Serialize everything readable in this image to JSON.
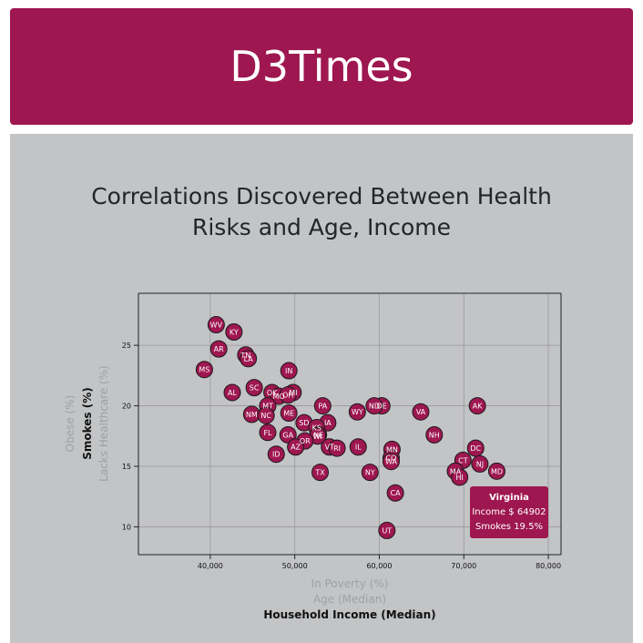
{
  "header": {
    "title": "D3Times"
  },
  "chart_title": {
    "line1": "Correlations Discovered Between Health",
    "line2": "Risks and Age, Income"
  },
  "tooltip": {
    "title": "Virginia",
    "line1": "Income $ 64902",
    "line2": "Smokes 19.5%"
  },
  "chart_data": {
    "type": "scatter",
    "x_axis_labels": [
      {
        "text": "In Poverty (%)",
        "active": false
      },
      {
        "text": "Age (Median)",
        "active": false
      },
      {
        "text": "Household Income (Median)",
        "active": true
      }
    ],
    "y_axis_labels": [
      {
        "text": "Obese (%)",
        "active": false
      },
      {
        "text": "Smokes (%)",
        "active": true
      },
      {
        "text": "Lacks Healthcare (%)",
        "active": false
      }
    ],
    "xlim": [
      31500,
      81500
    ],
    "ylim": [
      7.7,
      29.3
    ],
    "x_ticks": [
      40000,
      50000,
      60000,
      70000,
      80000
    ],
    "x_tick_labels": [
      "40,000",
      "50,000",
      "60,000",
      "70,000",
      "80,000"
    ],
    "y_ticks": [
      10,
      15,
      20,
      25
    ],
    "y_tick_labels": [
      "10",
      "15",
      "20",
      "25"
    ],
    "grid": true,
    "point_color": "#9e1750",
    "points": [
      {
        "abbr": "WV",
        "x": 40700,
        "y": 26.7
      },
      {
        "abbr": "KY",
        "x": 42800,
        "y": 26.1
      },
      {
        "abbr": "AR",
        "x": 41000,
        "y": 24.7
      },
      {
        "abbr": "TN",
        "x": 44200,
        "y": 24.2
      },
      {
        "abbr": "LA",
        "x": 44500,
        "y": 23.9
      },
      {
        "abbr": "MS",
        "x": 39300,
        "y": 23.0
      },
      {
        "abbr": "IN",
        "x": 49300,
        "y": 22.9
      },
      {
        "abbr": "SC",
        "x": 45200,
        "y": 21.5
      },
      {
        "abbr": "AL",
        "x": 42600,
        "y": 21.1
      },
      {
        "abbr": "OK",
        "x": 47300,
        "y": 21.1
      },
      {
        "abbr": "MI",
        "x": 49800,
        "y": 21.1
      },
      {
        "abbr": "MO",
        "x": 48100,
        "y": 20.8
      },
      {
        "abbr": "OH",
        "x": 49200,
        "y": 20.9
      },
      {
        "abbr": "MT",
        "x": 46800,
        "y": 20.0
      },
      {
        "abbr": "PA",
        "x": 53300,
        "y": 20.0
      },
      {
        "abbr": "DE",
        "x": 60300,
        "y": 20.0
      },
      {
        "abbr": "ND",
        "x": 59400,
        "y": 20.0
      },
      {
        "abbr": "AK",
        "x": 71600,
        "y": 20.0
      },
      {
        "abbr": "WY",
        "x": 57400,
        "y": 19.5
      },
      {
        "abbr": "VA",
        "x": 64900,
        "y": 19.5
      },
      {
        "abbr": "NM",
        "x": 44900,
        "y": 19.3
      },
      {
        "abbr": "NC",
        "x": 46600,
        "y": 19.2
      },
      {
        "abbr": "ME",
        "x": 49300,
        "y": 19.4
      },
      {
        "abbr": "SD",
        "x": 51100,
        "y": 18.6
      },
      {
        "abbr": "IA",
        "x": 53900,
        "y": 18.6
      },
      {
        "abbr": "KS",
        "x": 52600,
        "y": 18.2
      },
      {
        "abbr": "FL",
        "x": 46800,
        "y": 17.8
      },
      {
        "abbr": "GA",
        "x": 49200,
        "y": 17.6
      },
      {
        "abbr": "NE",
        "x": 52800,
        "y": 17.6
      },
      {
        "abbr": "WI",
        "x": 52700,
        "y": 17.5
      },
      {
        "abbr": "OR",
        "x": 51200,
        "y": 17.1
      },
      {
        "abbr": "NH",
        "x": 66500,
        "y": 17.6
      },
      {
        "abbr": "AZ",
        "x": 50100,
        "y": 16.6
      },
      {
        "abbr": "VT",
        "x": 54100,
        "y": 16.6
      },
      {
        "abbr": "RI",
        "x": 55000,
        "y": 16.5
      },
      {
        "abbr": "IL",
        "x": 57500,
        "y": 16.6
      },
      {
        "abbr": "DC",
        "x": 71400,
        "y": 16.5
      },
      {
        "abbr": "MN",
        "x": 61500,
        "y": 16.4
      },
      {
        "abbr": "ID",
        "x": 47800,
        "y": 16.0
      },
      {
        "abbr": "CO",
        "x": 61400,
        "y": 15.7
      },
      {
        "abbr": "WA",
        "x": 61400,
        "y": 15.4
      },
      {
        "abbr": "CT",
        "x": 69900,
        "y": 15.5
      },
      {
        "abbr": "NJ",
        "x": 71900,
        "y": 15.2
      },
      {
        "abbr": "MA",
        "x": 69000,
        "y": 14.6
      },
      {
        "abbr": "MD",
        "x": 73900,
        "y": 14.6
      },
      {
        "abbr": "HI",
        "x": 69500,
        "y": 14.1
      },
      {
        "abbr": "TX",
        "x": 53000,
        "y": 14.5
      },
      {
        "abbr": "NY",
        "x": 58900,
        "y": 14.5
      },
      {
        "abbr": "CA",
        "x": 61900,
        "y": 12.8
      },
      {
        "abbr": "UT",
        "x": 60900,
        "y": 9.7
      }
    ]
  }
}
